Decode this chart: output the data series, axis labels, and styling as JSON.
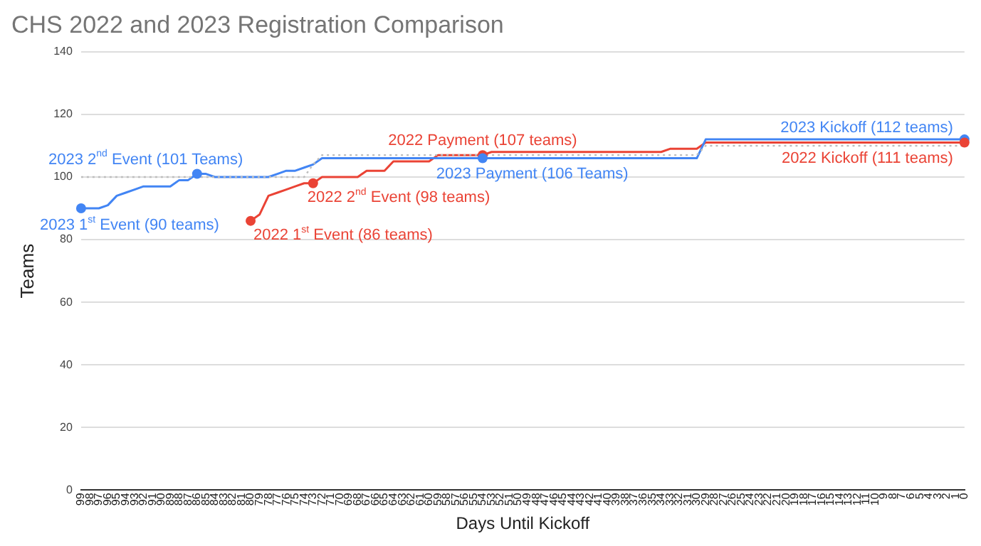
{
  "chart_data": {
    "type": "line",
    "title": "CHS 2022 and 2023 Registration Comparison",
    "xlabel": "Days Until Kickoff",
    "ylabel": "Teams",
    "categories": [
      "99",
      "98",
      "97",
      "96",
      "95",
      "94",
      "93",
      "92",
      "91",
      "90",
      "89",
      "88",
      "87",
      "86",
      "85",
      "84",
      "83",
      "82",
      "81",
      "80",
      "79",
      "78",
      "77",
      "76",
      "75",
      "74",
      "73",
      "72",
      "71",
      "70",
      "69",
      "68",
      "67",
      "66",
      "65",
      "64",
      "63",
      "62",
      "61",
      "60",
      "59",
      "58",
      "57",
      "56",
      "55",
      "54",
      "53",
      "52",
      "51",
      "50",
      "49",
      "48",
      "47",
      "46",
      "45",
      "44",
      "43",
      "42",
      "41",
      "40",
      "39",
      "38",
      "37",
      "36",
      "35",
      "34",
      "33",
      "32",
      "31",
      "30",
      "29",
      "28",
      "27",
      "26",
      "25",
      "24",
      "23",
      "22",
      "21",
      "20",
      "19",
      "18",
      "17",
      "16",
      "15",
      "14",
      "13",
      "12",
      "11",
      "10",
      "9",
      "8",
      "7",
      "6",
      "5",
      "4",
      "3",
      "2",
      "1",
      "0"
    ],
    "series": [
      {
        "color": "#bdbdbd",
        "line_style": "dotted",
        "values": [
          100,
          100,
          100,
          100,
          100,
          100,
          100,
          100,
          100,
          100,
          100,
          100,
          100,
          100,
          100,
          100,
          100,
          100,
          100,
          100,
          100,
          100,
          100,
          100,
          100,
          100,
          104,
          107,
          107,
          107,
          107,
          107,
          107,
          107,
          107,
          107,
          107,
          107,
          107,
          107,
          107,
          107,
          107,
          107,
          107,
          107,
          107,
          107,
          107,
          107,
          107,
          107,
          107,
          107,
          107,
          107,
          107,
          107,
          107,
          107,
          107,
          107,
          107,
          107,
          107,
          107,
          107,
          107,
          107,
          107,
          110,
          110,
          110,
          110,
          110,
          110,
          110,
          110,
          110,
          110,
          110,
          110,
          110,
          110,
          110,
          110,
          110,
          110,
          110,
          110,
          110,
          110,
          110,
          110,
          110,
          110,
          110,
          110,
          110,
          110
        ]
      },
      {
        "color": "#4285f4",
        "line_style": "solid",
        "values": [
          90,
          90,
          90,
          91,
          94,
          95,
          96,
          97,
          97,
          97,
          97,
          99,
          99,
          101,
          101,
          100,
          100,
          100,
          100,
          100,
          100,
          100,
          101,
          102,
          102,
          103,
          104,
          106,
          106,
          106,
          106,
          106,
          106,
          106,
          106,
          106,
          106,
          106,
          106,
          106,
          106,
          106,
          106,
          106,
          106,
          106,
          106,
          106,
          106,
          106,
          106,
          106,
          106,
          106,
          106,
          106,
          106,
          106,
          106,
          106,
          106,
          106,
          106,
          106,
          106,
          106,
          106,
          106,
          106,
          106,
          112,
          112,
          112,
          112,
          112,
          112,
          112,
          112,
          112,
          112,
          112,
          112,
          112,
          112,
          112,
          112,
          112,
          112,
          112,
          112,
          112,
          112,
          112,
          112,
          112,
          112,
          112,
          112,
          112,
          112
        ]
      },
      {
        "color": "#ea4335",
        "line_style": "solid",
        "values": [
          null,
          null,
          null,
          null,
          null,
          null,
          null,
          null,
          null,
          null,
          null,
          null,
          null,
          null,
          null,
          null,
          null,
          null,
          null,
          86,
          88,
          94,
          95,
          96,
          97,
          98,
          98,
          100,
          100,
          100,
          100,
          100,
          102,
          102,
          102,
          105,
          105,
          105,
          105,
          105,
          107,
          107,
          107,
          107,
          107,
          107,
          108,
          108,
          108,
          108,
          108,
          108,
          108,
          108,
          108,
          108,
          108,
          108,
          108,
          108,
          108,
          108,
          108,
          108,
          108,
          108,
          109,
          109,
          109,
          109,
          111,
          111,
          111,
          111,
          111,
          111,
          111,
          111,
          111,
          111,
          111,
          111,
          111,
          111,
          111,
          111,
          111,
          111,
          111,
          111,
          111,
          111,
          111,
          111,
          111,
          111,
          111,
          111,
          111,
          111
        ]
      }
    ],
    "annotations": [
      {
        "text": "2023 2$^{nd}$ Event (101 Teams)",
        "x": "86",
        "y": 101
      },
      {
        "text": "2023 1$^{st}$ Event (90 teams)",
        "x": "99",
        "y": 90
      },
      {
        "text": "2022 1$^{st}$ Event (86 teams)",
        "x": "80",
        "y": 86
      },
      {
        "text": "2022 2$^{nd}$ Event (98 teams)",
        "x": "73",
        "y": 98
      },
      {
        "text": "2022 Payment (107 teams)",
        "x": "54",
        "y": 107
      },
      {
        "text": "2023 Payment (106 Teams)",
        "x": "54",
        "y": 106
      },
      {
        "text": "2023 Kickoff (112 teams)",
        "x": "0",
        "y": 112
      },
      {
        "text": "2022 Kickoff (111 teams)",
        "x": "0",
        "y": 111
      }
    ],
    "ylim": [
      0,
      140
    ],
    "yticks": [
      0,
      20,
      40,
      60,
      80,
      100,
      120,
      140
    ],
    "grid": "y",
    "legend": false,
    "marker": "none"
  }
}
